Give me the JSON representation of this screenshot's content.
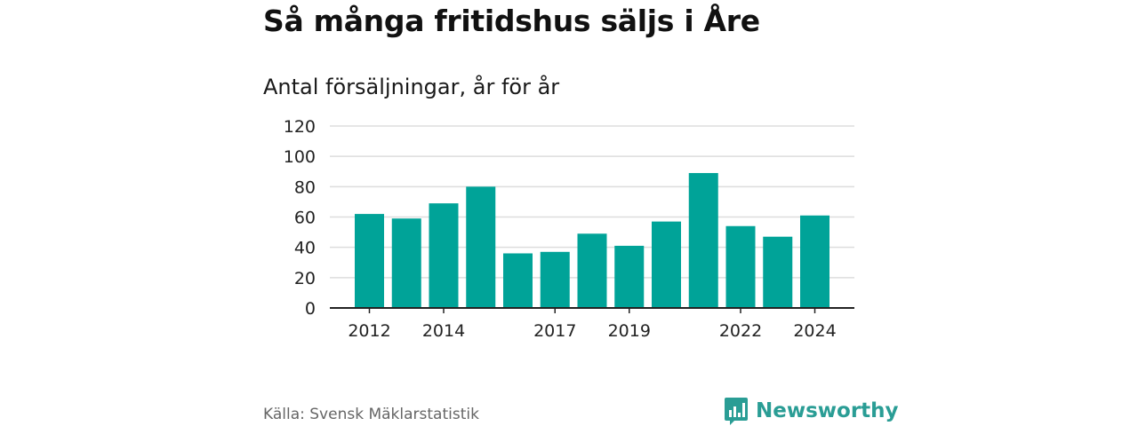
{
  "title": "Så många fritidshus säljs i Åre",
  "source": "Källa: Svensk Mäklarstatistik",
  "brand": {
    "name": "Newsworthy",
    "icon": "bar-chart-speech-icon",
    "color": "#2a9d95"
  },
  "colors": {
    "bar": "#00a398",
    "grid": "#dddddd",
    "axis": "#222222"
  },
  "chart_data": {
    "type": "bar",
    "title": "Så många fritidshus säljs i Åre",
    "subtitle": "Antal försäljningar, år för år",
    "categories": [
      "2012",
      "2013",
      "2014",
      "2015",
      "2016",
      "2017",
      "2018",
      "2019",
      "2020",
      "2021",
      "2022",
      "2023",
      "2024"
    ],
    "values": [
      62,
      59,
      69,
      80,
      36,
      37,
      49,
      41,
      57,
      89,
      54,
      47,
      61
    ],
    "x_tick_labels": [
      "2012",
      "2014",
      "2017",
      "2019",
      "2022",
      "2024"
    ],
    "y_ticks": [
      0,
      20,
      40,
      60,
      80,
      100,
      120
    ],
    "ylim": [
      0,
      120
    ],
    "xlabel": "",
    "ylabel": "",
    "grid": true
  }
}
